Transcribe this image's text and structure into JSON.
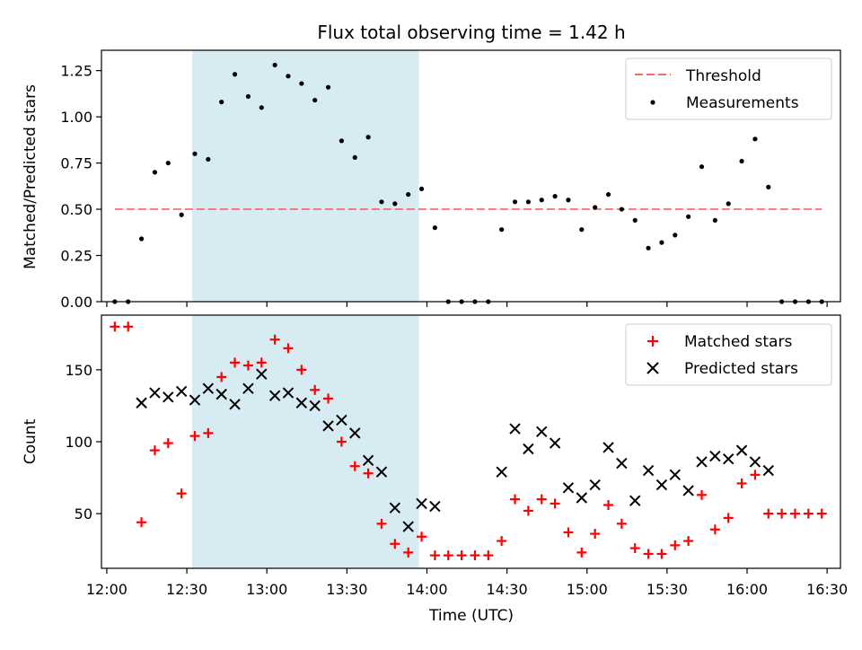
{
  "chart_data": [
    {
      "type": "scatter",
      "title": "Flux total observing time = 1.42 h",
      "xlabel": "",
      "ylabel": "Matched/Predicted stars",
      "xlim": [
        "11:58",
        "16:35"
      ],
      "ylim": [
        0,
        1.36
      ],
      "yticks": [
        "0.00",
        "0.25",
        "0.50",
        "0.75",
        "1.00",
        "1.25"
      ],
      "shaded_region": [
        "12:32",
        "13:57"
      ],
      "shaded_color": "#add8e6",
      "legend_position": "upper right",
      "threshold": {
        "name": "Threshold",
        "value": 0.5,
        "x_range": [
          "12:03",
          "16:28"
        ],
        "color": "#ff6666",
        "style": "dashed"
      },
      "series": [
        {
          "name": "Measurements",
          "color": "#000000",
          "marker": "dot",
          "points": [
            [
              "12:03",
              0.0
            ],
            [
              "12:08",
              0.0
            ],
            [
              "12:13",
              0.34
            ],
            [
              "12:18",
              0.7
            ],
            [
              "12:23",
              0.75
            ],
            [
              "12:28",
              0.47
            ],
            [
              "12:33",
              0.8
            ],
            [
              "12:38",
              0.77
            ],
            [
              "12:43",
              1.08
            ],
            [
              "12:48",
              1.23
            ],
            [
              "12:53",
              1.11
            ],
            [
              "12:58",
              1.05
            ],
            [
              "13:03",
              1.28
            ],
            [
              "13:08",
              1.22
            ],
            [
              "13:13",
              1.18
            ],
            [
              "13:18",
              1.09
            ],
            [
              "13:23",
              1.16
            ],
            [
              "13:28",
              0.87
            ],
            [
              "13:33",
              0.78
            ],
            [
              "13:38",
              0.89
            ],
            [
              "13:43",
              0.54
            ],
            [
              "13:48",
              0.53
            ],
            [
              "13:53",
              0.58
            ],
            [
              "13:58",
              0.61
            ],
            [
              "14:03",
              0.4
            ],
            [
              "14:08",
              0.0
            ],
            [
              "14:13",
              0.0
            ],
            [
              "14:18",
              0.0
            ],
            [
              "14:23",
              0.0
            ],
            [
              "14:28",
              0.39
            ],
            [
              "14:33",
              0.54
            ],
            [
              "14:38",
              0.54
            ],
            [
              "14:43",
              0.55
            ],
            [
              "14:48",
              0.57
            ],
            [
              "14:53",
              0.55
            ],
            [
              "14:58",
              0.39
            ],
            [
              "15:03",
              0.51
            ],
            [
              "15:08",
              0.58
            ],
            [
              "15:13",
              0.5
            ],
            [
              "15:18",
              0.44
            ],
            [
              "15:23",
              0.29
            ],
            [
              "15:28",
              0.32
            ],
            [
              "15:33",
              0.36
            ],
            [
              "15:38",
              0.46
            ],
            [
              "15:43",
              0.73
            ],
            [
              "15:48",
              0.44
            ],
            [
              "15:53",
              0.53
            ],
            [
              "15:58",
              0.76
            ],
            [
              "16:03",
              0.88
            ],
            [
              "16:08",
              0.62
            ],
            [
              "16:13",
              0.0
            ],
            [
              "16:18",
              0.0
            ],
            [
              "16:23",
              0.0
            ],
            [
              "16:28",
              0.0
            ]
          ]
        }
      ]
    },
    {
      "type": "scatter",
      "title": "",
      "xlabel": "Time (UTC)",
      "ylabel": "Count",
      "xlim": [
        "11:58",
        "16:35"
      ],
      "ylim": [
        12,
        188
      ],
      "yticks": [
        "50",
        "100",
        "150"
      ],
      "xticks": [
        "12:00",
        "12:30",
        "13:00",
        "13:30",
        "14:00",
        "14:30",
        "15:00",
        "15:30",
        "16:00",
        "16:30"
      ],
      "shaded_region": [
        "12:32",
        "13:57"
      ],
      "shaded_color": "#add8e6",
      "legend_position": "upper right",
      "series": [
        {
          "name": "Matched stars",
          "color": "#ff0000",
          "marker": "plus",
          "points": [
            [
              "12:03",
              180
            ],
            [
              "12:08",
              180
            ],
            [
              "12:13",
              44
            ],
            [
              "12:18",
              94
            ],
            [
              "12:23",
              99
            ],
            [
              "12:28",
              64
            ],
            [
              "12:33",
              104
            ],
            [
              "12:38",
              106
            ],
            [
              "12:43",
              145
            ],
            [
              "12:48",
              155
            ],
            [
              "12:53",
              153
            ],
            [
              "12:58",
              155
            ],
            [
              "13:03",
              171
            ],
            [
              "13:08",
              165
            ],
            [
              "13:13",
              150
            ],
            [
              "13:18",
              136
            ],
            [
              "13:23",
              130
            ],
            [
              "13:28",
              100
            ],
            [
              "13:33",
              83
            ],
            [
              "13:38",
              78
            ],
            [
              "13:43",
              43
            ],
            [
              "13:48",
              29
            ],
            [
              "13:53",
              23
            ],
            [
              "13:58",
              34
            ],
            [
              "14:03",
              21
            ],
            [
              "14:08",
              21
            ],
            [
              "14:13",
              21
            ],
            [
              "14:18",
              21
            ],
            [
              "14:23",
              21
            ],
            [
              "14:28",
              31
            ],
            [
              "14:33",
              60
            ],
            [
              "14:38",
              52
            ],
            [
              "14:43",
              60
            ],
            [
              "14:48",
              57
            ],
            [
              "14:53",
              37
            ],
            [
              "14:58",
              23
            ],
            [
              "15:03",
              36
            ],
            [
              "15:08",
              56
            ],
            [
              "15:13",
              43
            ],
            [
              "15:18",
              26
            ],
            [
              "15:23",
              22
            ],
            [
              "15:28",
              22
            ],
            [
              "15:33",
              28
            ],
            [
              "15:38",
              31
            ],
            [
              "15:43",
              63
            ],
            [
              "15:48",
              39
            ],
            [
              "15:53",
              47
            ],
            [
              "15:58",
              71
            ],
            [
              "16:03",
              77
            ],
            [
              "16:08",
              50
            ],
            [
              "16:13",
              50
            ],
            [
              "16:18",
              50
            ],
            [
              "16:23",
              50
            ],
            [
              "16:28",
              50
            ]
          ]
        },
        {
          "name": "Predicted stars",
          "color": "#000000",
          "marker": "x",
          "points": [
            [
              "12:13",
              127
            ],
            [
              "12:18",
              134
            ],
            [
              "12:23",
              131
            ],
            [
              "12:28",
              135
            ],
            [
              "12:33",
              129
            ],
            [
              "12:38",
              137
            ],
            [
              "12:43",
              133
            ],
            [
              "12:48",
              126
            ],
            [
              "12:53",
              137
            ],
            [
              "12:58",
              147
            ],
            [
              "13:03",
              132
            ],
            [
              "13:08",
              134
            ],
            [
              "13:13",
              127
            ],
            [
              "13:18",
              125
            ],
            [
              "13:23",
              111
            ],
            [
              "13:28",
              115
            ],
            [
              "13:33",
              106
            ],
            [
              "13:38",
              87
            ],
            [
              "13:43",
              79
            ],
            [
              "13:48",
              54
            ],
            [
              "13:53",
              41
            ],
            [
              "13:58",
              57
            ],
            [
              "14:03",
              55
            ],
            [
              "14:28",
              79
            ],
            [
              "14:33",
              109
            ],
            [
              "14:38",
              95
            ],
            [
              "14:43",
              107
            ],
            [
              "14:48",
              99
            ],
            [
              "14:53",
              68
            ],
            [
              "14:58",
              61
            ],
            [
              "15:03",
              70
            ],
            [
              "15:08",
              96
            ],
            [
              "15:13",
              85
            ],
            [
              "15:18",
              59
            ],
            [
              "15:23",
              80
            ],
            [
              "15:28",
              70
            ],
            [
              "15:33",
              77
            ],
            [
              "15:38",
              66
            ],
            [
              "15:43",
              86
            ],
            [
              "15:48",
              90
            ],
            [
              "15:53",
              88
            ],
            [
              "15:58",
              94
            ],
            [
              "16:03",
              86
            ],
            [
              "16:08",
              80
            ]
          ]
        }
      ]
    }
  ]
}
